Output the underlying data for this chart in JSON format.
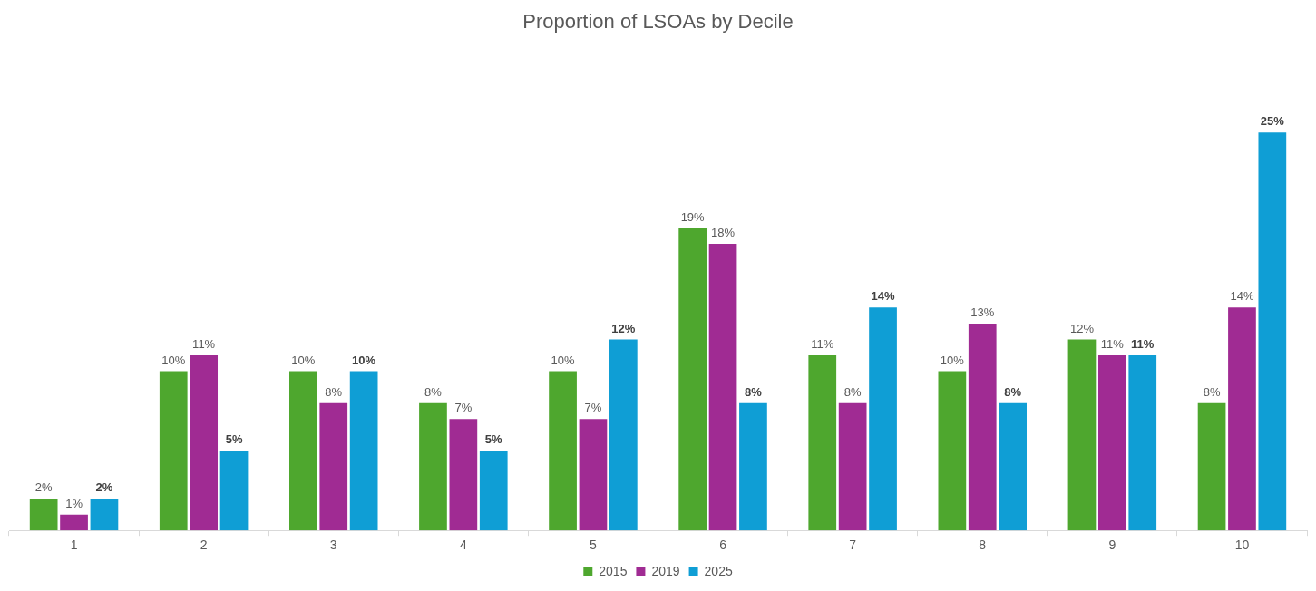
{
  "chart_data": {
    "type": "bar",
    "title": "Proportion of LSOAs by Decile",
    "categories": [
      "1",
      "2",
      "3",
      "4",
      "5",
      "6",
      "7",
      "8",
      "9",
      "10"
    ],
    "series": [
      {
        "name": "2015",
        "color": "#4ea72e",
        "values": [
          2,
          10,
          10,
          8,
          10,
          19,
          11,
          10,
          12,
          8
        ],
        "value_labels": [
          "2%",
          "10%",
          "10%",
          "8%",
          "10%",
          "19%",
          "11%",
          "10%",
          "12%",
          "8%"
        ]
      },
      {
        "name": "2019",
        "color": "#a02b93",
        "values": [
          1,
          11,
          8,
          7,
          7,
          18,
          8,
          13,
          11,
          14
        ],
        "value_labels": [
          "1%",
          "11%",
          "8%",
          "7%",
          "7%",
          "18%",
          "8%",
          "13%",
          "11%",
          "14%"
        ]
      },
      {
        "name": "2025",
        "color": "#0f9ed5",
        "values": [
          2,
          5,
          10,
          5,
          12,
          8,
          14,
          8,
          11,
          25
        ],
        "value_labels": [
          "2%",
          "5%",
          "10%",
          "5%",
          "12%",
          "8%",
          "14%",
          "8%",
          "11%",
          "25%"
        ]
      }
    ],
    "grid": false,
    "legend": "bottom"
  }
}
